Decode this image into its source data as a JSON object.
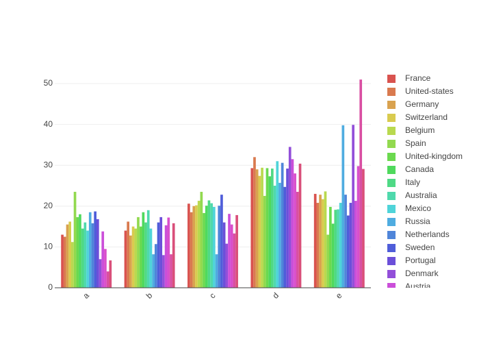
{
  "chart_data": {
    "type": "bar",
    "categories": [
      "a",
      "b",
      "c",
      "d",
      "e"
    ],
    "ylim": [
      0,
      53.7
    ],
    "yticks": [
      0,
      10,
      20,
      30,
      40,
      50
    ],
    "grid": true,
    "series": [
      {
        "name": "France",
        "color": "#d9534f",
        "values": [
          13,
          14,
          20.6,
          29.3,
          23
        ]
      },
      {
        "name": "United-states",
        "color": "#d97a4f",
        "values": [
          12.5,
          16.2,
          18.5,
          32,
          20.8
        ]
      },
      {
        "name": "Germany",
        "color": "#d9a24f",
        "values": [
          15.5,
          12.8,
          20,
          29,
          22.8
        ]
      },
      {
        "name": "Switzerland",
        "color": "#d9cb4f",
        "values": [
          16.2,
          15,
          20.2,
          27.4,
          21.7
        ]
      },
      {
        "name": "Belgium",
        "color": "#b9d94f",
        "values": [
          11.2,
          14.5,
          21.3,
          29.4,
          23.6
        ]
      },
      {
        "name": "Spain",
        "color": "#92d94f",
        "values": [
          23.5,
          17.3,
          23.5,
          22.5,
          13
        ]
      },
      {
        "name": "United-kingdom",
        "color": "#6bd94f",
        "values": [
          17.3,
          15,
          18.3,
          29.3,
          19.8
        ]
      },
      {
        "name": "Canada",
        "color": "#4fd95d",
        "values": [
          18,
          18.5,
          20.1,
          27.3,
          15.7
        ]
      },
      {
        "name": "Italy",
        "color": "#4fd985",
        "values": [
          14.5,
          16,
          21.4,
          29.2,
          19.1
        ]
      },
      {
        "name": "Australia",
        "color": "#4fd9ac",
        "values": [
          16,
          19,
          20.7,
          25,
          19.2
        ]
      },
      {
        "name": "Mexico",
        "color": "#4fd4d9",
        "values": [
          14,
          14.5,
          19.8,
          31,
          20.8
        ]
      },
      {
        "name": "Russia",
        "color": "#4face0",
        "values": [
          18.5,
          8.2,
          8.2,
          25.7,
          39.8
        ]
      },
      {
        "name": "Netherlands",
        "color": "#4f85d9",
        "values": [
          15.8,
          10.7,
          20.1,
          30.6,
          22.8
        ]
      },
      {
        "name": "Sweden",
        "color": "#4f5dd9",
        "values": [
          18.7,
          16,
          22.8,
          24.7,
          17.7
        ]
      },
      {
        "name": "Portugal",
        "color": "#6b4fd9",
        "values": [
          16.8,
          17.3,
          16,
          29.2,
          20.8
        ]
      },
      {
        "name": "Denmark",
        "color": "#924fd9",
        "values": [
          7,
          8,
          10.8,
          34.5,
          39.9
        ]
      },
      {
        "name": "Austria",
        "color": "#cb4fd9",
        "values": [
          13.8,
          15.3,
          18.1,
          31.5,
          21.3
        ]
      },
      {
        "color": "#d94fcb",
        "values": [
          9.5,
          17.2,
          15.5,
          28,
          29.8
        ]
      },
      {
        "color": "#d94fa2",
        "values": [
          4,
          8.2,
          13.3,
          23.5,
          51
        ]
      },
      {
        "color": "#d94f7a",
        "values": [
          6.7,
          15.8,
          17.8,
          30.4,
          29.1
        ]
      }
    ]
  }
}
